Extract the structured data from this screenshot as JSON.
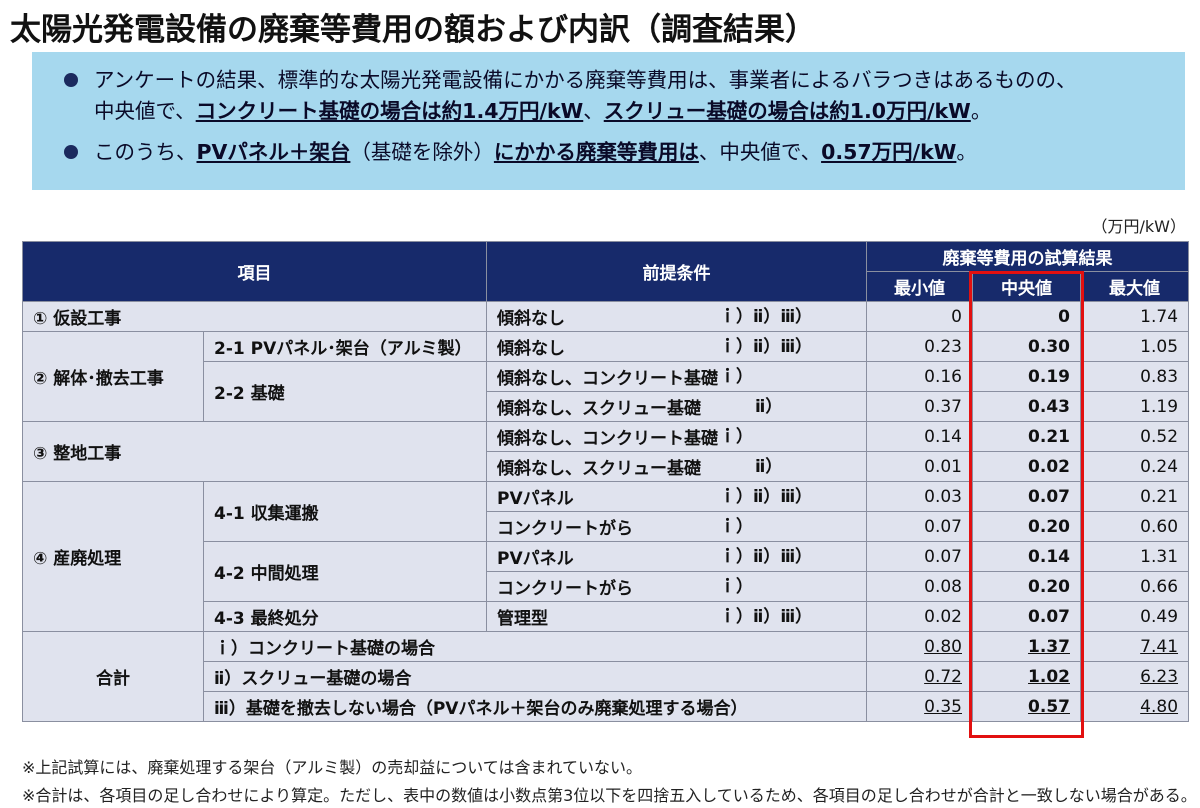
{
  "title": "太陽光発電設備の廃棄等費用の額および内訳（調査結果）",
  "summary": {
    "b1_t1": "アンケートの結果、標準的な太陽光発電設備にかかる廃棄等費用は、事業者によるバラつきはあるものの、",
    "b1_t2": "中央値で、",
    "b1_u1": "コンクリート基礎の場合は約1.4万円/kW",
    "b1_t3": "、",
    "b1_u2": "スクリュー基礎の場合は約1.0万円/kW",
    "b1_t4": "。",
    "b2_t1": "このうち、",
    "b2_u1": "PVパネル＋架台",
    "b2_t2": "（基礎を除外）",
    "b2_u2": "にかかる廃棄等費用は",
    "b2_t3": "、中央値で、",
    "b2_u3": "0.57万円/kW",
    "b2_t4": "。"
  },
  "unit": "（万円/kW）",
  "header": {
    "item": "項目",
    "condition": "前提条件",
    "result": "廃棄等費用の試算結果",
    "min": "最小値",
    "median": "中央値",
    "max": "最大値"
  },
  "rows": {
    "r1": {
      "cat": "① 仮設工事",
      "cond": "傾斜なし",
      "refs": "ｉ）ⅱ）ⅲ）",
      "min": "0",
      "med": "0",
      "max": "1.74"
    },
    "r2": {
      "cat": "② 解体･撤去工事",
      "sub": "2-1 PVパネル･架台（アルミ製）",
      "cond": "傾斜なし",
      "refs": "ｉ）ⅱ）ⅲ）",
      "min": "0.23",
      "med": "0.30",
      "max": "1.05"
    },
    "r3": {
      "sub": "2-2 基礎",
      "cond": "傾斜なし、コンクリート基礎",
      "refs": "ｉ）",
      "min": "0.16",
      "med": "0.19",
      "max": "0.83"
    },
    "r4": {
      "cond": "傾斜なし、スクリュー基礎",
      "refs": "ⅱ）",
      "min": "0.37",
      "med": "0.43",
      "max": "1.19"
    },
    "r5": {
      "cat": "③ 整地工事",
      "cond": "傾斜なし、コンクリート基礎",
      "refs": "ｉ）",
      "min": "0.14",
      "med": "0.21",
      "max": "0.52"
    },
    "r6": {
      "cond": "傾斜なし、スクリュー基礎",
      "refs": "ⅱ）",
      "min": "0.01",
      "med": "0.02",
      "max": "0.24"
    },
    "r7": {
      "cat": "④ 産廃処理",
      "sub": "4-1 収集運搬",
      "cond": "PVパネル",
      "refs": "ｉ）ⅱ）ⅲ）",
      "min": "0.03",
      "med": "0.07",
      "max": "0.21"
    },
    "r8": {
      "cond": "コンクリートがら",
      "refs": "ｉ）",
      "min": "0.07",
      "med": "0.20",
      "max": "0.60"
    },
    "r9": {
      "sub": "4-2 中間処理",
      "cond": "PVパネル",
      "refs": "ｉ）ⅱ）ⅲ）",
      "min": "0.07",
      "med": "0.14",
      "max": "1.31"
    },
    "r10": {
      "cond": "コンクリートがら",
      "refs": "ｉ）",
      "min": "0.08",
      "med": "0.20",
      "max": "0.66"
    },
    "r11": {
      "sub": "4-3 最終処分",
      "cond": "管理型",
      "refs": "ｉ）ⅱ）ⅲ）",
      "min": "0.02",
      "med": "0.07",
      "max": "0.49"
    }
  },
  "totals": {
    "label": "合計",
    "t1": {
      "label": "ｉ）コンクリート基礎の場合",
      "min": "0.80",
      "med": "1.37",
      "max": "7.41"
    },
    "t2": {
      "label": "ⅱ）スクリュー基礎の場合",
      "min": "0.72",
      "med": "1.02",
      "max": "6.23"
    },
    "t3": {
      "label": "ⅲ）基礎を撤去しない場合（PVパネル＋架台のみ廃棄処理する場合）",
      "min": "0.35",
      "med": "0.57",
      "max": "4.80"
    }
  },
  "notes": {
    "n1": "※上記試算には、廃棄処理する架台（アルミ製）の売却益については含まれていない。",
    "n2": "※合計は、各項目の足し合わせにより算定。ただし、表中の数値は小数点第3位以下を四捨五入しているため、各項目の足し合わせが合計と一致しない場合がある。"
  },
  "colors": {
    "header_bg": "#172a6b",
    "cell_bg": "#e0e3ee",
    "summary_bg": "#a6d8ee",
    "highlight_border": "#e21010"
  }
}
